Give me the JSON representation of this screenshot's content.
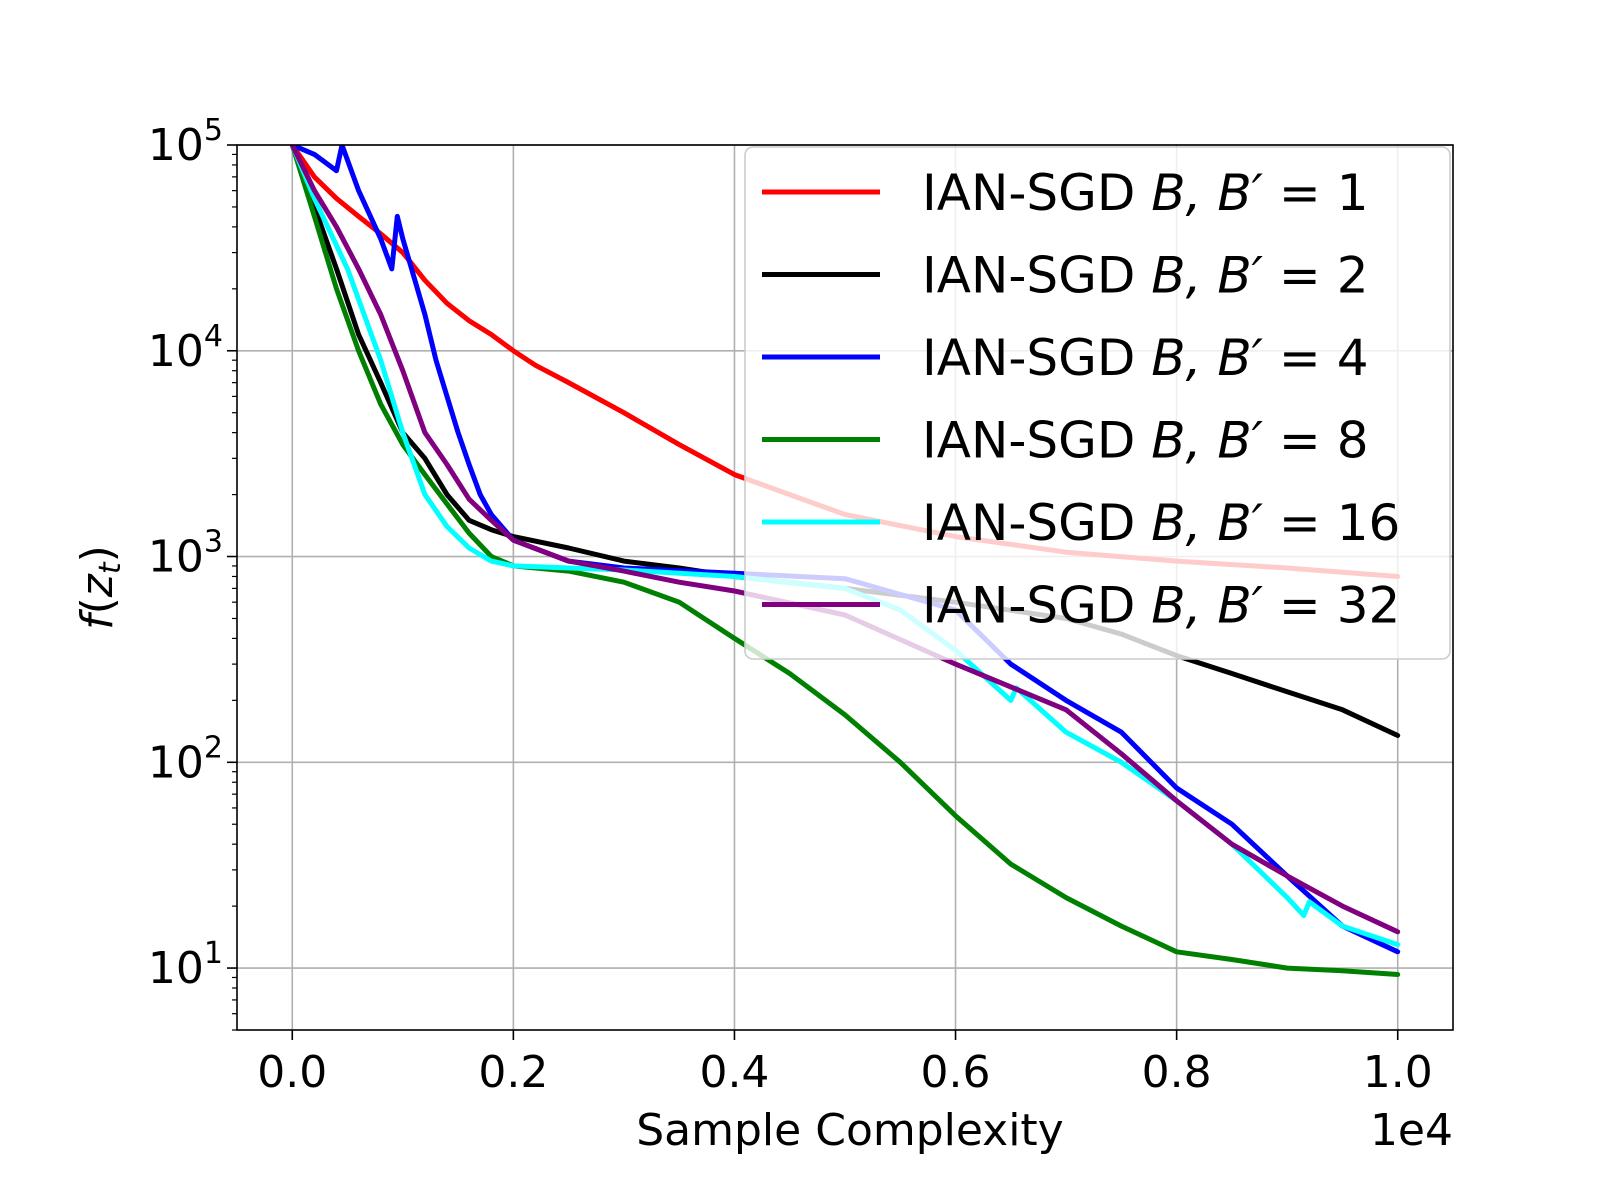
{
  "chart_data": {
    "type": "line",
    "title": "",
    "xlabel": "Sample Complexity",
    "ylabel": "f(z_t)",
    "xscale": "linear",
    "yscale": "log",
    "x_offset_label": "1e4",
    "xlim": [
      -0.05,
      1.05
    ],
    "ylim": [
      5,
      100000
    ],
    "xticks": [
      0.0,
      0.2,
      0.4,
      0.6,
      0.8,
      1.0
    ],
    "xtick_labels": [
      "0.0",
      "0.2",
      "0.4",
      "0.6",
      "0.8",
      "1.0"
    ],
    "yticks": [
      10,
      100,
      1000,
      10000,
      100000
    ],
    "ytick_labels": [
      {
        "base": "10",
        "exp": "1"
      },
      {
        "base": "10",
        "exp": "2"
      },
      {
        "base": "10",
        "exp": "3"
      },
      {
        "base": "10",
        "exp": "4"
      },
      {
        "base": "10",
        "exp": "5"
      }
    ],
    "grid": true,
    "legend_position": "top-right",
    "series": [
      {
        "name": "IAN-SGD B,B′ = 1",
        "legend": {
          "prefix": "IAN-SGD ",
          "var": "B, B′",
          "suffix": " = 1"
        },
        "color": "#ff0000",
        "points": [
          [
            0.0,
            100000
          ],
          [
            0.02,
            70000
          ],
          [
            0.04,
            55000
          ],
          [
            0.06,
            45000
          ],
          [
            0.08,
            37000
          ],
          [
            0.1,
            30000
          ],
          [
            0.12,
            22000
          ],
          [
            0.14,
            17000
          ],
          [
            0.16,
            14000
          ],
          [
            0.18,
            12000
          ],
          [
            0.2,
            10000
          ],
          [
            0.22,
            8500
          ],
          [
            0.25,
            7000
          ],
          [
            0.3,
            5000
          ],
          [
            0.35,
            3500
          ],
          [
            0.4,
            2500
          ],
          [
            0.45,
            2000
          ],
          [
            0.5,
            1600
          ],
          [
            0.6,
            1250
          ],
          [
            0.7,
            1050
          ],
          [
            0.8,
            950
          ],
          [
            0.9,
            880
          ],
          [
            1.0,
            800
          ]
        ]
      },
      {
        "name": "IAN-SGD B,B′ = 2",
        "legend": {
          "prefix": "IAN-SGD ",
          "var": "B, B′",
          "suffix": " = 2"
        },
        "color": "#000000",
        "points": [
          [
            0.0,
            100000
          ],
          [
            0.02,
            50000
          ],
          [
            0.04,
            25000
          ],
          [
            0.06,
            12000
          ],
          [
            0.08,
            7000
          ],
          [
            0.1,
            4000
          ],
          [
            0.12,
            3000
          ],
          [
            0.14,
            2000
          ],
          [
            0.16,
            1500
          ],
          [
            0.18,
            1350
          ],
          [
            0.2,
            1250
          ],
          [
            0.25,
            1100
          ],
          [
            0.3,
            950
          ],
          [
            0.35,
            880
          ],
          [
            0.4,
            800
          ],
          [
            0.5,
            700
          ],
          [
            0.6,
            600
          ],
          [
            0.7,
            500
          ],
          [
            0.75,
            420
          ],
          [
            0.8,
            330
          ],
          [
            0.85,
            270
          ],
          [
            0.9,
            220
          ],
          [
            0.95,
            180
          ],
          [
            1.0,
            135
          ]
        ]
      },
      {
        "name": "IAN-SGD B,B′ = 4",
        "legend": {
          "prefix": "IAN-SGD ",
          "var": "B, B′",
          "suffix": " = 4"
        },
        "color": "#0000ff",
        "points": [
          [
            0.0,
            100000
          ],
          [
            0.02,
            90000
          ],
          [
            0.04,
            75000
          ],
          [
            0.045,
            100000
          ],
          [
            0.06,
            60000
          ],
          [
            0.08,
            35000
          ],
          [
            0.09,
            25000
          ],
          [
            0.095,
            45000
          ],
          [
            0.1,
            35000
          ],
          [
            0.12,
            15000
          ],
          [
            0.13,
            9000
          ],
          [
            0.14,
            6000
          ],
          [
            0.15,
            4000
          ],
          [
            0.16,
            2800
          ],
          [
            0.17,
            2000
          ],
          [
            0.18,
            1600
          ],
          [
            0.2,
            1200
          ],
          [
            0.25,
            950
          ],
          [
            0.3,
            880
          ],
          [
            0.4,
            830
          ],
          [
            0.5,
            780
          ],
          [
            0.6,
            550
          ],
          [
            0.65,
            300
          ],
          [
            0.7,
            200
          ],
          [
            0.75,
            140
          ],
          [
            0.8,
            75
          ],
          [
            0.85,
            50
          ],
          [
            0.9,
            28
          ],
          [
            0.95,
            16
          ],
          [
            1.0,
            12
          ]
        ]
      },
      {
        "name": "IAN-SGD B,B′ = 8",
        "legend": {
          "prefix": "IAN-SGD ",
          "var": "B, B′",
          "suffix": " = 8"
        },
        "color": "#008000",
        "points": [
          [
            0.0,
            100000
          ],
          [
            0.02,
            45000
          ],
          [
            0.04,
            20000
          ],
          [
            0.06,
            10000
          ],
          [
            0.08,
            5500
          ],
          [
            0.1,
            3500
          ],
          [
            0.12,
            2500
          ],
          [
            0.14,
            1800
          ],
          [
            0.16,
            1300
          ],
          [
            0.18,
            1000
          ],
          [
            0.2,
            900
          ],
          [
            0.25,
            850
          ],
          [
            0.3,
            750
          ],
          [
            0.35,
            600
          ],
          [
            0.4,
            400
          ],
          [
            0.45,
            270
          ],
          [
            0.5,
            170
          ],
          [
            0.55,
            100
          ],
          [
            0.6,
            55
          ],
          [
            0.65,
            32
          ],
          [
            0.7,
            22
          ],
          [
            0.75,
            16
          ],
          [
            0.8,
            12
          ],
          [
            0.85,
            11
          ],
          [
            0.9,
            10
          ],
          [
            0.95,
            9.7
          ],
          [
            1.0,
            9.3
          ]
        ]
      },
      {
        "name": "IAN-SGD B,B′ = 16",
        "legend": {
          "prefix": "IAN-SGD ",
          "var": "B, B′",
          "suffix": " = 16"
        },
        "color": "#00ffff",
        "points": [
          [
            0.0,
            100000
          ],
          [
            0.02,
            55000
          ],
          [
            0.05,
            25000
          ],
          [
            0.08,
            9000
          ],
          [
            0.1,
            4000
          ],
          [
            0.12,
            2000
          ],
          [
            0.14,
            1400
          ],
          [
            0.16,
            1100
          ],
          [
            0.18,
            950
          ],
          [
            0.2,
            900
          ],
          [
            0.3,
            860
          ],
          [
            0.4,
            800
          ],
          [
            0.5,
            700
          ],
          [
            0.55,
            550
          ],
          [
            0.6,
            350
          ],
          [
            0.65,
            200
          ],
          [
            0.655,
            230
          ],
          [
            0.7,
            140
          ],
          [
            0.75,
            100
          ],
          [
            0.8,
            65
          ],
          [
            0.85,
            40
          ],
          [
            0.9,
            22
          ],
          [
            0.915,
            18
          ],
          [
            0.92,
            21
          ],
          [
            0.95,
            16
          ],
          [
            1.0,
            13
          ]
        ]
      },
      {
        "name": "IAN-SGD B,B′ = 32",
        "legend": {
          "prefix": "IAN-SGD ",
          "var": "B, B′",
          "suffix": " = 32"
        },
        "color": "#800080",
        "points": [
          [
            0.0,
            100000
          ],
          [
            0.02,
            60000
          ],
          [
            0.04,
            40000
          ],
          [
            0.06,
            25000
          ],
          [
            0.08,
            15000
          ],
          [
            0.1,
            8000
          ],
          [
            0.12,
            4000
          ],
          [
            0.14,
            2800
          ],
          [
            0.16,
            1900
          ],
          [
            0.18,
            1500
          ],
          [
            0.2,
            1200
          ],
          [
            0.25,
            950
          ],
          [
            0.3,
            850
          ],
          [
            0.35,
            750
          ],
          [
            0.4,
            680
          ],
          [
            0.5,
            520
          ],
          [
            0.6,
            300
          ],
          [
            0.7,
            180
          ],
          [
            0.75,
            110
          ],
          [
            0.8,
            65
          ],
          [
            0.85,
            40
          ],
          [
            0.9,
            28
          ],
          [
            0.95,
            20
          ],
          [
            1.0,
            15
          ]
        ]
      }
    ]
  }
}
